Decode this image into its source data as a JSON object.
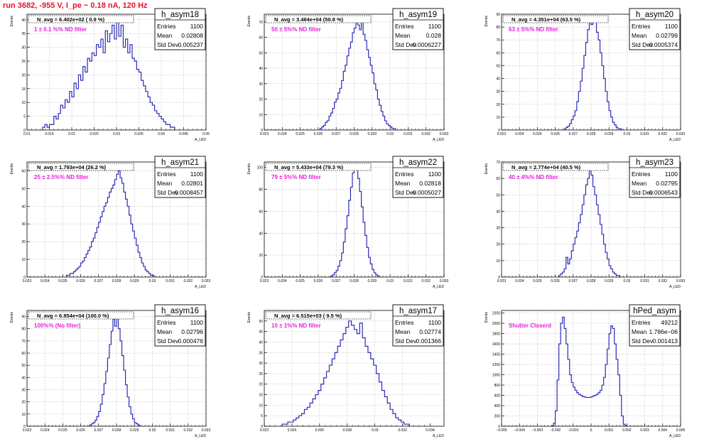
{
  "page": {
    "run_title": "run 3682,  -955 V, I_pe ~ 0.18 nA, 120 Hz"
  },
  "colors": {
    "histogram": "#2b2bb8",
    "annotation": "#e820e0",
    "title": "#e8102a",
    "frame": "#000000",
    "grid": "#a0a0a0"
  },
  "chart_data": [
    {
      "type": "histogram",
      "name": "h_asym18",
      "ylabel": "Events",
      "xlabel": "A_LED",
      "navg": "N_avg = 6.402e+02 ( 0.9 %)",
      "filter_text": "1 ± 0.1 %% ND filter",
      "stats": {
        "entries_label": "Entries",
        "entries": "1100",
        "mean_label": "Mean",
        "mean": "0.02808",
        "std_label": "Std Dev",
        "std": "0.005237"
      },
      "xlim": [
        0.01,
        0.05
      ],
      "ylim": [
        0,
        42
      ],
      "xticks": [
        0.01,
        0.015,
        0.02,
        0.025,
        0.03,
        0.035,
        0.04,
        0.045,
        0.05
      ],
      "xtick_labels": [
        "0.01",
        "0.015",
        "0.02",
        "0.025",
        "0.03",
        "0.035",
        "0.04",
        "0.045",
        "0.05"
      ],
      "yticks": [
        0,
        5,
        10,
        15,
        20,
        25,
        30,
        35,
        40
      ],
      "ytick_labels": [
        "0",
        "5",
        "10",
        "15",
        "20",
        "25",
        "30",
        "35",
        "40"
      ],
      "bin_start": 0.0135,
      "bin_width": 0.0005,
      "counts": [
        1,
        2,
        1,
        2,
        2,
        5,
        4,
        6,
        9,
        8,
        11,
        10,
        14,
        12,
        17,
        15,
        20,
        18,
        23,
        21,
        26,
        25,
        28,
        27,
        31,
        30,
        33,
        28,
        36,
        32,
        35,
        38,
        33,
        40,
        34,
        38,
        30,
        33,
        28,
        31,
        26,
        25,
        22,
        21,
        18,
        16,
        14,
        12,
        10,
        9,
        7,
        6,
        5,
        4,
        3,
        2,
        2,
        1,
        1
      ]
    },
    {
      "type": "histogram",
      "name": "h_asym19",
      "ylabel": "Events",
      "xlabel": "A_LED",
      "navg": "N_avg = 3.484e+04 (50.8 %)",
      "filter_text": "50 ± 5%% ND filter",
      "stats": {
        "entries_label": "Entries",
        "entries": "1100",
        "mean_label": "Mean",
        "mean": "0.028",
        "std_label": "Std Dev",
        "std": "0.0006227"
      },
      "xlim": [
        0.023,
        0.033
      ],
      "ylim": [
        0,
        75
      ],
      "xticks": [
        0.023,
        0.024,
        0.025,
        0.026,
        0.027,
        0.028,
        0.029,
        0.03,
        0.031,
        0.032,
        0.033
      ],
      "xtick_labels": [
        "0.023",
        "0.024",
        "0.025",
        "0.026",
        "0.027",
        "0.028",
        "0.029",
        "0.03",
        "0.031",
        "0.032",
        "0.033"
      ],
      "yticks": [
        0,
        10,
        20,
        30,
        40,
        50,
        60,
        70
      ],
      "ytick_labels": [
        "0",
        "10",
        "20",
        "30",
        "40",
        "50",
        "60",
        "70"
      ],
      "bin_start": 0.0261,
      "bin_width": 0.0001,
      "counts": [
        1,
        2,
        3,
        5,
        6,
        9,
        11,
        14,
        18,
        20,
        24,
        27,
        32,
        38,
        42,
        48,
        53,
        57,
        63,
        66,
        71,
        68,
        65,
        70,
        62,
        58,
        52,
        47,
        42,
        37,
        30,
        26,
        20,
        16,
        12,
        9,
        6,
        4,
        3,
        2,
        1,
        1
      ]
    },
    {
      "type": "histogram",
      "name": "h_asym20",
      "ylabel": "Events",
      "xlabel": "A_LED",
      "navg": "N_avg = 4.351e+04 (63.5 %)",
      "filter_text": "63 ± 5%% ND filter",
      "stats": {
        "entries_label": "Entries",
        "entries": "1100",
        "mean_label": "Mean",
        "mean": "0.02799",
        "std_label": "Std Dev",
        "std": "0.0005374"
      },
      "xlim": [
        0.023,
        0.033
      ],
      "ylim": [
        0,
        90
      ],
      "xticks": [
        0.023,
        0.024,
        0.025,
        0.026,
        0.027,
        0.028,
        0.029,
        0.03,
        0.031,
        0.032,
        0.033
      ],
      "xtick_labels": [
        "0.023",
        "0.024",
        "0.025",
        "0.026",
        "0.027",
        "0.028",
        "0.029",
        "0.03",
        "0.031",
        "0.032",
        "0.033"
      ],
      "yticks": [
        0,
        10,
        20,
        30,
        40,
        50,
        60,
        70,
        80,
        90
      ],
      "ytick_labels": [
        "0",
        "10",
        "20",
        "30",
        "40",
        "50",
        "60",
        "70",
        "80",
        "90"
      ],
      "bin_start": 0.0265,
      "bin_width": 0.0001,
      "counts": [
        1,
        2,
        3,
        5,
        8,
        11,
        15,
        22,
        30,
        38,
        48,
        58,
        68,
        78,
        85,
        82,
        88,
        84,
        76,
        70,
        60,
        50,
        40,
        30,
        22,
        15,
        10,
        6,
        4,
        2,
        1,
        1
      ]
    },
    {
      "type": "histogram",
      "name": "h_asym21",
      "ylabel": "Events",
      "xlabel": "A_LED",
      "navg": "N_avg = 1.793e+04 (26.2 %)",
      "filter_text": "25 ± 2.5%% ND filter",
      "stats": {
        "entries_label": "Entries",
        "entries": "1100",
        "mean_label": "Mean",
        "mean": "0.02801",
        "std_label": "Std Dev",
        "std": "0.0008457"
      },
      "xlim": [
        0.023,
        0.033
      ],
      "ylim": [
        0,
        65
      ],
      "xticks": [
        0.023,
        0.024,
        0.025,
        0.026,
        0.027,
        0.028,
        0.029,
        0.03,
        0.031,
        0.032,
        0.033
      ],
      "xtick_labels": [
        "0.023",
        "0.024",
        "0.025",
        "0.026",
        "0.027",
        "0.028",
        "0.029",
        "0.03",
        "0.031",
        "0.032",
        "0.033"
      ],
      "yticks": [
        0,
        10,
        20,
        30,
        40,
        50,
        60
      ],
      "ytick_labels": [
        "0",
        "10",
        "20",
        "30",
        "40",
        "50",
        "60"
      ],
      "bin_start": 0.0252,
      "bin_width": 0.0001,
      "counts": [
        1,
        1,
        2,
        2,
        3,
        4,
        5,
        6,
        8,
        9,
        11,
        13,
        15,
        17,
        20,
        22,
        25,
        28,
        31,
        34,
        37,
        40,
        42,
        45,
        48,
        50,
        52,
        55,
        58,
        60,
        56,
        53,
        48,
        44,
        40,
        35,
        30,
        26,
        22,
        18,
        14,
        11,
        8,
        6,
        4,
        3,
        2,
        1,
        1
      ]
    },
    {
      "type": "histogram",
      "name": "h_asym22",
      "ylabel": "Events",
      "xlabel": "A_LED",
      "navg": "N_avg = 5.433e+04 (79.3 %)",
      "filter_text": "79 ± 5%% ND filter",
      "stats": {
        "entries_label": "Entries",
        "entries": "1100",
        "mean_label": "Mean",
        "mean": "0.02818",
        "std_label": "Std Dev",
        "std": "0.0005027"
      },
      "xlim": [
        0.023,
        0.033
      ],
      "ylim": [
        0,
        105
      ],
      "xticks": [
        0.023,
        0.024,
        0.025,
        0.026,
        0.027,
        0.028,
        0.029,
        0.03,
        0.031,
        0.032,
        0.033
      ],
      "xtick_labels": [
        "0.023",
        "0.024",
        "0.025",
        "0.026",
        "0.027",
        "0.028",
        "0.029",
        "0.03",
        "0.031",
        "0.032",
        "0.033"
      ],
      "yticks": [
        0,
        20,
        40,
        60,
        80,
        100
      ],
      "ytick_labels": [
        "0",
        "20",
        "40",
        "60",
        "80",
        "100"
      ],
      "bin_start": 0.0267,
      "bin_width": 0.0001,
      "counts": [
        1,
        2,
        4,
        6,
        10,
        15,
        22,
        32,
        44,
        56,
        70,
        82,
        95,
        100,
        98,
        90,
        78,
        64,
        50,
        38,
        27,
        18,
        12,
        7,
        4,
        2,
        1
      ]
    },
    {
      "type": "histogram",
      "name": "h_asym23",
      "ylabel": "Events",
      "xlabel": "A_LED",
      "navg": "N_avg = 2.774e+04 (40.5 %)",
      "filter_text": "40 ± 4%% ND filter",
      "stats": {
        "entries_label": "Entries",
        "entries": "1100",
        "mean_label": "Mean",
        "mean": "0.02795",
        "std_label": "Std Dev",
        "std": "0.0006543"
      },
      "xlim": [
        0.023,
        0.033
      ],
      "ylim": [
        0,
        70
      ],
      "xticks": [
        0.023,
        0.024,
        0.025,
        0.026,
        0.027,
        0.028,
        0.029,
        0.03,
        0.031,
        0.032,
        0.033
      ],
      "xtick_labels": [
        "0.023",
        "0.024",
        "0.025",
        "0.026",
        "0.027",
        "0.028",
        "0.029",
        "0.03",
        "0.031",
        "0.032",
        "0.033"
      ],
      "yticks": [
        0,
        10,
        20,
        30,
        40,
        50,
        60,
        70
      ],
      "ytick_labels": [
        "0",
        "10",
        "20",
        "30",
        "40",
        "50",
        "60",
        "70"
      ],
      "bin_start": 0.0262,
      "bin_width": 0.0001,
      "counts": [
        1,
        2,
        3,
        5,
        12,
        8,
        11,
        16,
        20,
        24,
        28,
        33,
        38,
        44,
        50,
        56,
        60,
        66,
        62,
        55,
        50,
        44,
        38,
        32,
        26,
        20,
        15,
        11,
        7,
        5,
        3,
        2,
        1,
        1
      ]
    },
    {
      "type": "histogram",
      "name": "h_asym16",
      "ylabel": "Events",
      "xlabel": "A_LED",
      "navg": "N_avg = 6.854e+04 (100.0 %)",
      "filter_text": "100%% (No filter)",
      "stats": {
        "entries_label": "Entries",
        "entries": "1100",
        "mean_label": "Mean",
        "mean": "0.02796",
        "std_label": "Std Dev",
        "std": "0.000476"
      },
      "xlim": [
        0.023,
        0.033
      ],
      "ylim": [
        0,
        95
      ],
      "xticks": [
        0.023,
        0.024,
        0.025,
        0.026,
        0.027,
        0.028,
        0.029,
        0.03,
        0.031,
        0.032,
        0.033
      ],
      "xtick_labels": [
        "0.023",
        "0.024",
        "0.025",
        "0.026",
        "0.027",
        "0.028",
        "0.029",
        "0.03",
        "0.031",
        "0.032",
        "0.033"
      ],
      "yticks": [
        0,
        10,
        20,
        30,
        40,
        50,
        60,
        70,
        80,
        90
      ],
      "ytick_labels": [
        "0",
        "10",
        "20",
        "30",
        "40",
        "50",
        "60",
        "70",
        "80",
        "90"
      ],
      "bin_start": 0.0265,
      "bin_width": 0.0001,
      "counts": [
        1,
        2,
        3,
        5,
        8,
        12,
        18,
        26,
        35,
        45,
        56,
        67,
        78,
        88,
        82,
        90,
        80,
        70,
        58,
        46,
        34,
        24,
        16,
        10,
        6,
        3,
        2,
        1
      ]
    },
    {
      "type": "histogram",
      "name": "h_asym17",
      "ylabel": "Events",
      "xlabel": "A_LED",
      "navg": "N_avg = 6.515e+03 ( 9.5 %)",
      "filter_text": "10 ± 1%% ND filter",
      "stats": {
        "entries_label": "Entries",
        "entries": "1100",
        "mean_label": "Mean",
        "mean": "0.02774",
        "std_label": "Std Dev",
        "std": "0.001366"
      },
      "xlim": [
        0.022,
        0.035
      ],
      "ylim": [
        0,
        55
      ],
      "xticks": [
        0.022,
        0.024,
        0.026,
        0.028,
        0.03,
        0.032,
        0.034
      ],
      "xtick_labels": [
        "0.022",
        "0.024",
        "0.026",
        "0.028",
        "0.03",
        "0.032",
        "0.034"
      ],
      "yticks": [
        0,
        5,
        10,
        15,
        20,
        25,
        30,
        35,
        40,
        45,
        50
      ],
      "ytick_labels": [
        "0",
        "5",
        "10",
        "15",
        "20",
        "25",
        "30",
        "35",
        "40",
        "45",
        "50"
      ],
      "bin_start": 0.0233,
      "bin_width": 0.0002,
      "counts": [
        1,
        1,
        2,
        2,
        3,
        4,
        5,
        6,
        8,
        9,
        11,
        13,
        15,
        17,
        20,
        23,
        26,
        29,
        32,
        35,
        38,
        41,
        44,
        47,
        50,
        48,
        46,
        44,
        49,
        42,
        38,
        35,
        32,
        29,
        25,
        21,
        17,
        14,
        11,
        8,
        6,
        4,
        3,
        2,
        1,
        1
      ]
    },
    {
      "type": "histogram",
      "name": "hPed_asym",
      "ylabel": "Events",
      "xlabel": "A_LED",
      "navg": "",
      "filter_text": "Shutter Closerd",
      "stats": {
        "entries_label": "Entries",
        "entries": "49212",
        "mean_label": "Mean",
        "mean": "1.786e−06",
        "std_label": "Std Dev",
        "std": "0.001413"
      },
      "xlim": [
        -0.005,
        0.005
      ],
      "ylim": [
        0,
        2250
      ],
      "xticks": [
        -0.005,
        -0.004,
        -0.003,
        -0.002,
        -0.001,
        0,
        0.001,
        0.002,
        0.003,
        0.004,
        0.005
      ],
      "xtick_labels": [
        "−0.005",
        "−0.004",
        "−0.003",
        "−0.002",
        "−0.001",
        "0",
        "0.001",
        "0.002",
        "0.003",
        "0.004",
        "0.005"
      ],
      "yticks": [
        0,
        200,
        400,
        600,
        800,
        1000,
        1200,
        1400,
        1600,
        1800,
        2000,
        2200
      ],
      "ytick_labels": [
        "0",
        "200",
        "400",
        "600",
        "800",
        "1000",
        "1200",
        "1400",
        "1600",
        "1800",
        "2000",
        "2200"
      ],
      "bin_start": -0.0022,
      "bin_width": 0.0001,
      "counts": [
        10,
        60,
        300,
        900,
        1600,
        2000,
        2120,
        1900,
        1600,
        1300,
        1000,
        850,
        760,
        700,
        650,
        620,
        600,
        580,
        570,
        560,
        560,
        560,
        570,
        590,
        600,
        620,
        650,
        700,
        800,
        950,
        1200,
        1500,
        1800,
        1950,
        1900,
        1600,
        1300,
        1000,
        600,
        200,
        40,
        10
      ]
    }
  ]
}
